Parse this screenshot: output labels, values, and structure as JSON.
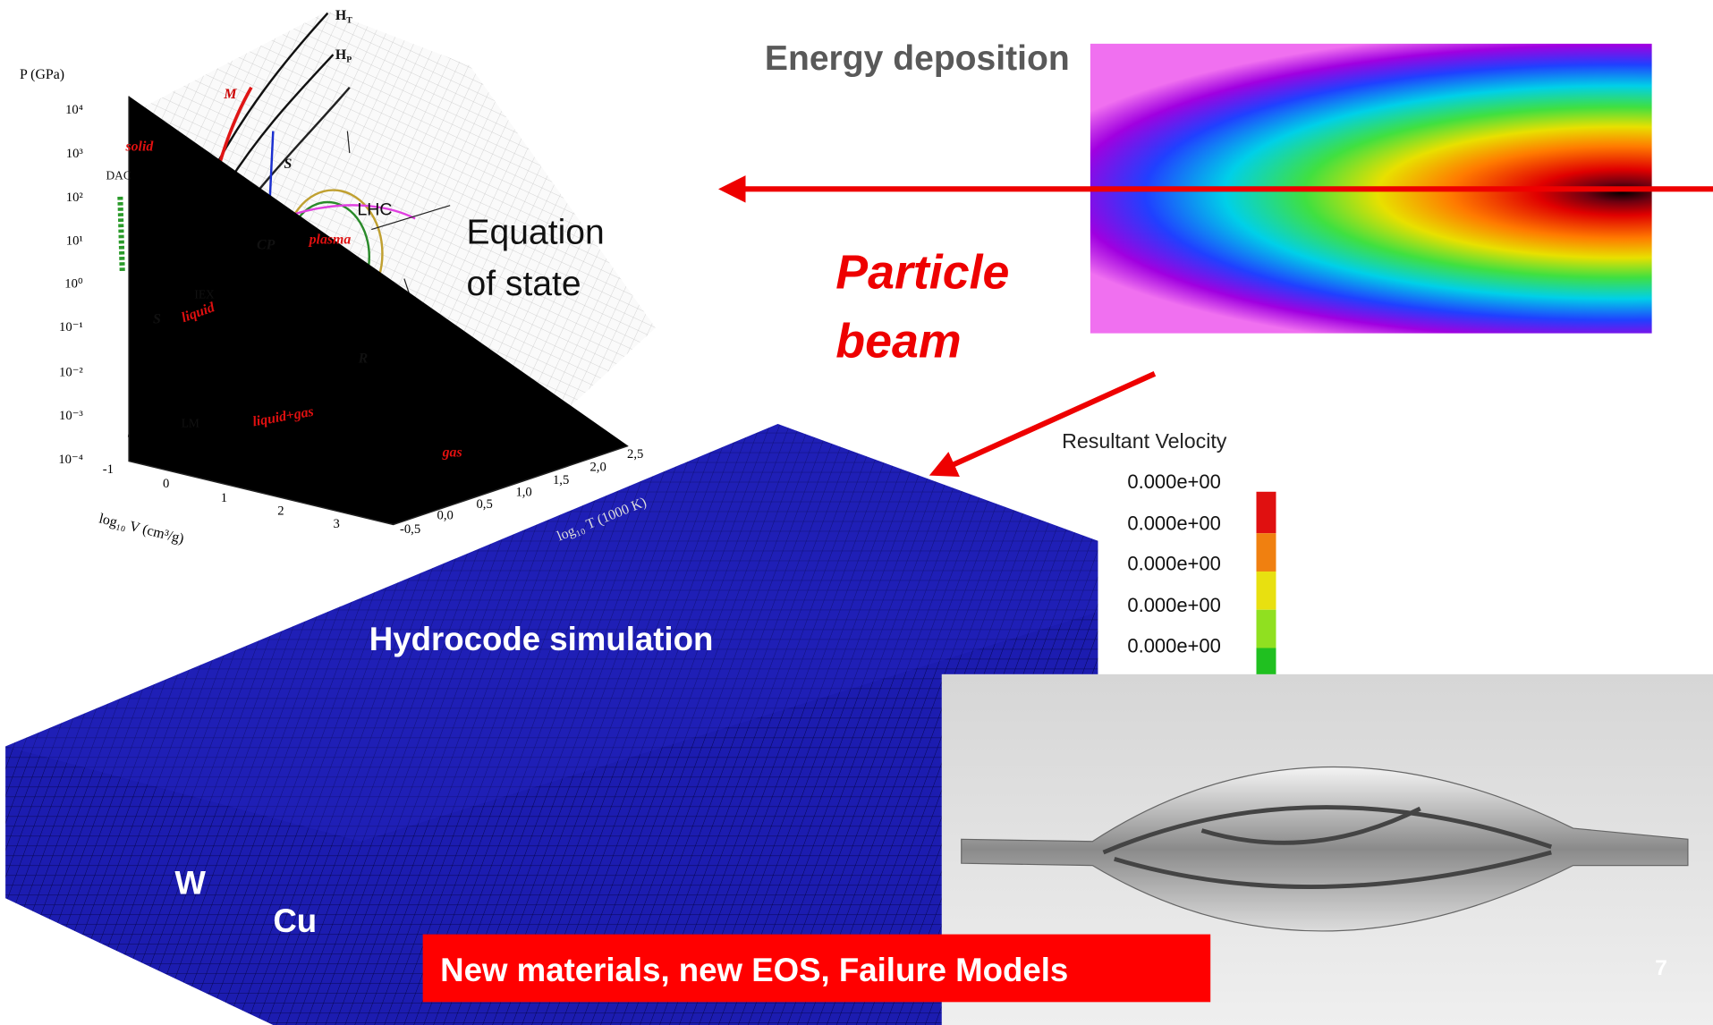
{
  "energy_deposition": {
    "label": "Energy deposition"
  },
  "beam": {
    "label_lines": [
      "Particle",
      "beam"
    ]
  },
  "eos": {
    "label_lines": [
      "Equation",
      "of state"
    ],
    "y_axis_label": "P (GPa)",
    "y_ticks": [
      "10⁴",
      "10³",
      "10²",
      "10¹",
      "10⁰",
      "10⁻¹",
      "10⁻²",
      "10⁻³",
      "10⁻⁴"
    ],
    "x_ticks": [
      "-1",
      "0",
      "1",
      "2",
      "3"
    ],
    "t_ticks": [
      "-0,5",
      "0,0",
      "0,5",
      "1,0",
      "1,5",
      "2,0",
      "2,5"
    ],
    "x_axis_label": "log₁₀ V (cm³/g)",
    "t_axis_label": "log₁₀ T (1000 K)",
    "regions": [
      "solid",
      "liquid",
      "plasma",
      "liquid+gas",
      "gas"
    ],
    "curve_labels": [
      "M",
      "S",
      "S",
      "DAC",
      "LHC",
      "CP",
      "IEX",
      "LM",
      "R"
    ],
    "hugoniots": [
      {
        "main": "H",
        "sub": "T"
      },
      {
        "main": "H",
        "sub": "P"
      }
    ]
  },
  "legend": {
    "title": "Resultant Velocity",
    "values": [
      "0.000e+00",
      "0.000e+00",
      "0.000e+00",
      "0.000e+00",
      "0.000e+00"
    ]
  },
  "simulation": {
    "label": "Hydrocode simulation",
    "materials": [
      "W",
      "Cu"
    ]
  },
  "banner": {
    "text": "New materials, new EOS, Failure Models"
  },
  "slide_number": 7
}
